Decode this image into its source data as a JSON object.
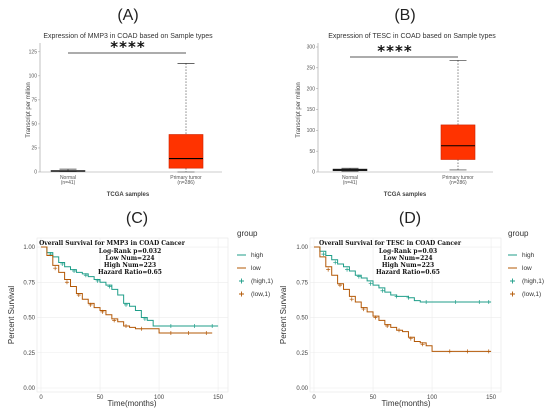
{
  "panels": {
    "a": {
      "letter": "(A)",
      "sig": "****"
    },
    "b": {
      "letter": "(B)",
      "sig": "****"
    },
    "c": {
      "letter": "(C)"
    },
    "d": {
      "letter": "(D)"
    }
  },
  "chart_data": [
    {
      "type": "box",
      "id": "a",
      "title": "Expression of MMP3 in COAD based on Sample types",
      "xlabel": "TCGA samples",
      "ylabel": "Transcript per million",
      "ylim": [
        0,
        130
      ],
      "yticks": [
        0,
        25,
        50,
        75,
        100,
        125
      ],
      "categories": [
        {
          "name": "Normal",
          "n": "(n=41)",
          "min": 0.3,
          "q1": 0.6,
          "median": 1.0,
          "q3": 1.5,
          "max": 3.0,
          "color": "#333333"
        },
        {
          "name": "Primary tumor",
          "n": "(n=286)",
          "min": 0,
          "q1": 4,
          "median": 14,
          "q3": 39,
          "max": 113,
          "color": "#ff3300"
        }
      ]
    },
    {
      "type": "box",
      "id": "b",
      "title": "Expression of TESC in COAD based on Sample types",
      "xlabel": "TCGA samples",
      "ylabel": "Transcript per million",
      "ylim": [
        0,
        300
      ],
      "yticks": [
        0,
        50,
        100,
        150,
        200,
        250,
        300
      ],
      "categories": [
        {
          "name": "Normal",
          "n": "(n=41)",
          "min": 2,
          "q1": 3,
          "median": 5,
          "q3": 7,
          "max": 9,
          "color": "#333333"
        },
        {
          "name": "Primary tumor",
          "n": "(n=286)",
          "min": 5,
          "q1": 30,
          "median": 63,
          "q3": 113,
          "max": 268,
          "color": "#ff3300"
        }
      ]
    },
    {
      "type": "line",
      "id": "c",
      "title": "Overall Survival for MMP3 in COAD Cancer",
      "annotations": [
        "Log-Rank p=0.032",
        "Low Num=224",
        "High Num=223",
        "Hazard Ratio=0.65"
      ],
      "xlabel": "Time(months)",
      "ylabel": "Percent Survival",
      "xlim": [
        0,
        155
      ],
      "ylim": [
        0,
        1.05
      ],
      "xticks": [
        0,
        50,
        100,
        150
      ],
      "yticks": [
        "0.00",
        "0.25",
        "0.50",
        "0.75",
        "1.00"
      ],
      "legend_title": "group",
      "legend": [
        "high",
        "low",
        "(high,1)",
        "(low,1)"
      ],
      "series": [
        {
          "name": "high",
          "color": "#1f9e89",
          "points": [
            [
              0,
              1.0
            ],
            [
              5,
              0.96
            ],
            [
              10,
              0.93
            ],
            [
              15,
              0.89
            ],
            [
              20,
              0.86
            ],
            [
              25,
              0.84
            ],
            [
              30,
              0.82
            ],
            [
              35,
              0.81
            ],
            [
              40,
              0.79
            ],
            [
              45,
              0.77
            ],
            [
              50,
              0.75
            ],
            [
              55,
              0.73
            ],
            [
              60,
              0.7
            ],
            [
              65,
              0.66
            ],
            [
              70,
              0.6
            ],
            [
              75,
              0.58
            ],
            [
              80,
              0.55
            ],
            [
              85,
              0.5
            ],
            [
              90,
              0.48
            ],
            [
              95,
              0.44
            ],
            [
              100,
              0.44
            ],
            [
              150,
              0.44
            ]
          ],
          "censor": [
            [
              8,
              0.95
            ],
            [
              18,
              0.88
            ],
            [
              28,
              0.83
            ],
            [
              38,
              0.8
            ],
            [
              48,
              0.76
            ],
            [
              58,
              0.72
            ],
            [
              72,
              0.59
            ],
            [
              88,
              0.49
            ],
            [
              110,
              0.44
            ],
            [
              130,
              0.44
            ],
            [
              145,
              0.44
            ]
          ]
        },
        {
          "name": "low",
          "color": "#b35806",
          "points": [
            [
              0,
              1.0
            ],
            [
              5,
              0.94
            ],
            [
              10,
              0.87
            ],
            [
              15,
              0.82
            ],
            [
              20,
              0.77
            ],
            [
              25,
              0.72
            ],
            [
              30,
              0.67
            ],
            [
              35,
              0.63
            ],
            [
              40,
              0.6
            ],
            [
              45,
              0.57
            ],
            [
              50,
              0.55
            ],
            [
              55,
              0.52
            ],
            [
              60,
              0.49
            ],
            [
              65,
              0.47
            ],
            [
              70,
              0.44
            ],
            [
              75,
              0.43
            ],
            [
              80,
              0.42
            ],
            [
              90,
              0.42
            ],
            [
              100,
              0.39
            ],
            [
              145,
              0.39
            ]
          ],
          "censor": [
            [
              12,
              0.85
            ],
            [
              22,
              0.75
            ],
            [
              32,
              0.66
            ],
            [
              42,
              0.59
            ],
            [
              52,
              0.54
            ],
            [
              62,
              0.48
            ],
            [
              72,
              0.44
            ],
            [
              85,
              0.42
            ],
            [
              110,
              0.39
            ],
            [
              125,
              0.39
            ],
            [
              140,
              0.39
            ]
          ]
        }
      ]
    },
    {
      "type": "line",
      "id": "d",
      "title": "Overall Survival for TESC in COAD Cancer",
      "annotations": [
        "Log-Rank p=0.03",
        "Low Num=224",
        "High Num=223",
        "Hazard Ratio=0.65"
      ],
      "xlabel": "Time(months)",
      "ylabel": "Percent Survival",
      "xlim": [
        0,
        155
      ],
      "ylim": [
        0,
        1.05
      ],
      "xticks": [
        0,
        50,
        100,
        150
      ],
      "yticks": [
        "0.00",
        "0.25",
        "0.50",
        "0.75",
        "1.00"
      ],
      "legend_title": "group",
      "legend": [
        "high",
        "low",
        "(high,1)",
        "(low,1)"
      ],
      "series": [
        {
          "name": "high",
          "color": "#1f9e89",
          "points": [
            [
              0,
              1.0
            ],
            [
              5,
              0.97
            ],
            [
              10,
              0.94
            ],
            [
              15,
              0.91
            ],
            [
              20,
              0.88
            ],
            [
              25,
              0.86
            ],
            [
              30,
              0.83
            ],
            [
              35,
              0.8
            ],
            [
              40,
              0.78
            ],
            [
              45,
              0.76
            ],
            [
              50,
              0.73
            ],
            [
              55,
              0.71
            ],
            [
              60,
              0.68
            ],
            [
              65,
              0.66
            ],
            [
              70,
              0.65
            ],
            [
              80,
              0.64
            ],
            [
              85,
              0.62
            ],
            [
              90,
              0.61
            ],
            [
              150,
              0.61
            ]
          ],
          "censor": [
            [
              8,
              0.95
            ],
            [
              18,
              0.89
            ],
            [
              28,
              0.84
            ],
            [
              38,
              0.79
            ],
            [
              48,
              0.74
            ],
            [
              58,
              0.69
            ],
            [
              70,
              0.65
            ],
            [
              80,
              0.64
            ],
            [
              95,
              0.61
            ],
            [
              120,
              0.61
            ],
            [
              140,
              0.61
            ],
            [
              148,
              0.61
            ]
          ]
        },
        {
          "name": "low",
          "color": "#b35806",
          "points": [
            [
              0,
              1.0
            ],
            [
              5,
              0.93
            ],
            [
              10,
              0.86
            ],
            [
              15,
              0.8
            ],
            [
              20,
              0.74
            ],
            [
              25,
              0.7
            ],
            [
              30,
              0.65
            ],
            [
              35,
              0.61
            ],
            [
              40,
              0.57
            ],
            [
              45,
              0.54
            ],
            [
              50,
              0.51
            ],
            [
              55,
              0.48
            ],
            [
              60,
              0.45
            ],
            [
              65,
              0.43
            ],
            [
              70,
              0.41
            ],
            [
              75,
              0.4
            ],
            [
              80,
              0.36
            ],
            [
              85,
              0.33
            ],
            [
              90,
              0.32
            ],
            [
              95,
              0.3
            ],
            [
              100,
              0.26
            ],
            [
              150,
              0.26
            ]
          ],
          "censor": [
            [
              12,
              0.84
            ],
            [
              22,
              0.73
            ],
            [
              32,
              0.63
            ],
            [
              42,
              0.56
            ],
            [
              52,
              0.5
            ],
            [
              62,
              0.44
            ],
            [
              72,
              0.41
            ],
            [
              82,
              0.35
            ],
            [
              92,
              0.31
            ],
            [
              115,
              0.26
            ],
            [
              130,
              0.26
            ],
            [
              148,
              0.26
            ]
          ]
        }
      ]
    }
  ]
}
